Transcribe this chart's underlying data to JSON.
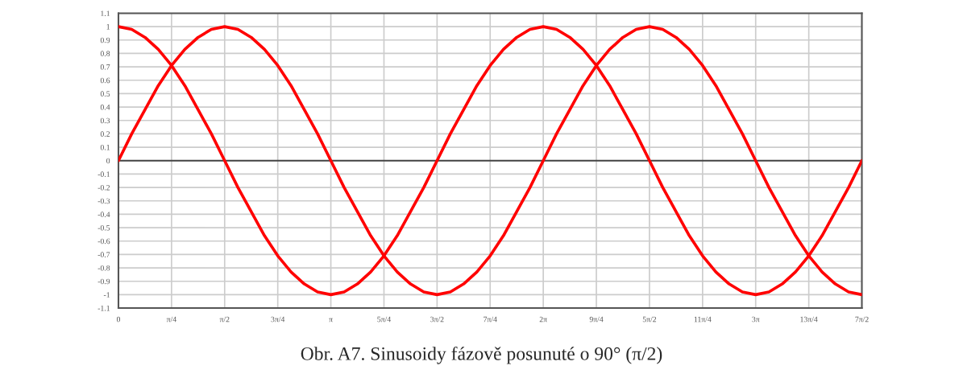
{
  "chart_data": {
    "type": "line",
    "annotations": [
      "Obr. A7. Sinusoidy fázově posunuté o 90° (π/2)"
    ],
    "x": [
      0,
      0.1963,
      0.3927,
      0.589,
      0.7854,
      0.9817,
      1.1781,
      1.3744,
      1.5708,
      1.7671,
      1.9635,
      2.1598,
      2.3562,
      2.5525,
      2.7489,
      2.9452,
      3.1416,
      3.3379,
      3.5343,
      3.7306,
      3.927,
      4.1233,
      4.3197,
      4.516,
      4.7124,
      4.9087,
      5.1051,
      5.3014,
      5.4978,
      5.6941,
      5.8905,
      6.0868,
      6.2832,
      6.4795,
      6.6759,
      6.8722,
      7.0686,
      7.2649,
      7.4613,
      7.6576,
      7.854,
      8.0503,
      8.2467,
      8.443,
      8.6394,
      8.8357,
      9.0321,
      9.2284,
      9.4248,
      9.6211,
      9.8175,
      10.0138,
      10.2102,
      10.4065,
      10.6029,
      10.7992,
      10.9956
    ],
    "series": [
      {
        "color": "#ff0000",
        "values": [
          0,
          0.2,
          0.38,
          0.56,
          0.71,
          0.83,
          0.92,
          0.98,
          1,
          0.98,
          0.92,
          0.83,
          0.71,
          0.56,
          0.38,
          0.2,
          0,
          -0.2,
          -0.38,
          -0.56,
          -0.71,
          -0.83,
          -0.92,
          -0.98,
          -1,
          -0.98,
          -0.92,
          -0.83,
          -0.71,
          -0.56,
          -0.38,
          -0.2,
          0,
          0.2,
          0.38,
          0.56,
          0.71,
          0.83,
          0.92,
          0.98,
          1,
          0.98,
          0.92,
          0.83,
          0.71,
          0.56,
          0.38,
          0.2,
          0,
          -0.2,
          -0.38,
          -0.56,
          -0.71,
          -0.83,
          -0.92,
          -0.98,
          -1
        ]
      },
      {
        "color": "#ff0000",
        "values": [
          1,
          0.98,
          0.92,
          0.83,
          0.71,
          0.56,
          0.38,
          0.2,
          0,
          -0.2,
          -0.38,
          -0.56,
          -0.71,
          -0.83,
          -0.92,
          -0.98,
          -1,
          -0.98,
          -0.92,
          -0.83,
          -0.71,
          -0.56,
          -0.38,
          -0.2,
          0,
          0.2,
          0.38,
          0.56,
          0.71,
          0.83,
          0.92,
          0.98,
          1,
          0.98,
          0.92,
          0.83,
          0.71,
          0.56,
          0.38,
          0.2,
          0,
          -0.2,
          -0.38,
          -0.56,
          -0.71,
          -0.83,
          -0.92,
          -0.98,
          -1,
          -0.98,
          -0.92,
          -0.83,
          -0.71,
          -0.56,
          -0.38,
          -0.2,
          0
        ]
      }
    ],
    "xlim": [
      0,
      10.9956
    ],
    "ylim": [
      -1.1,
      1.1
    ],
    "xticks": [
      {
        "value": 0,
        "label": "0"
      },
      {
        "value": 0.7854,
        "label": "π/4"
      },
      {
        "value": 1.5708,
        "label": "π/2"
      },
      {
        "value": 2.3562,
        "label": "3π/4"
      },
      {
        "value": 3.1416,
        "label": "π"
      },
      {
        "value": 3.927,
        "label": "5π/4"
      },
      {
        "value": 4.7124,
        "label": "3π/2"
      },
      {
        "value": 5.4978,
        "label": "7π/4"
      },
      {
        "value": 6.2832,
        "label": "2π"
      },
      {
        "value": 7.0686,
        "label": "9π/4"
      },
      {
        "value": 7.854,
        "label": "5π/2"
      },
      {
        "value": 8.6394,
        "label": "11π/4"
      },
      {
        "value": 9.4248,
        "label": "3π"
      },
      {
        "value": 10.2102,
        "label": "13π/4"
      },
      {
        "value": 10.9956,
        "label": "7π/2"
      }
    ],
    "yticks": [
      -1.1,
      -1,
      -0.9,
      -0.8,
      -0.7,
      -0.6,
      -0.5,
      -0.4,
      -0.3,
      -0.2,
      -0.1,
      0,
      0.1,
      0.2,
      0.3,
      0.4,
      0.5,
      0.6,
      0.7,
      0.8,
      0.9,
      1,
      1.1
    ],
    "grid": true,
    "line_style": "solid",
    "marker": "none",
    "ref_lines": [
      {
        "axis": "y",
        "value": 0,
        "color": "#444444"
      }
    ]
  }
}
